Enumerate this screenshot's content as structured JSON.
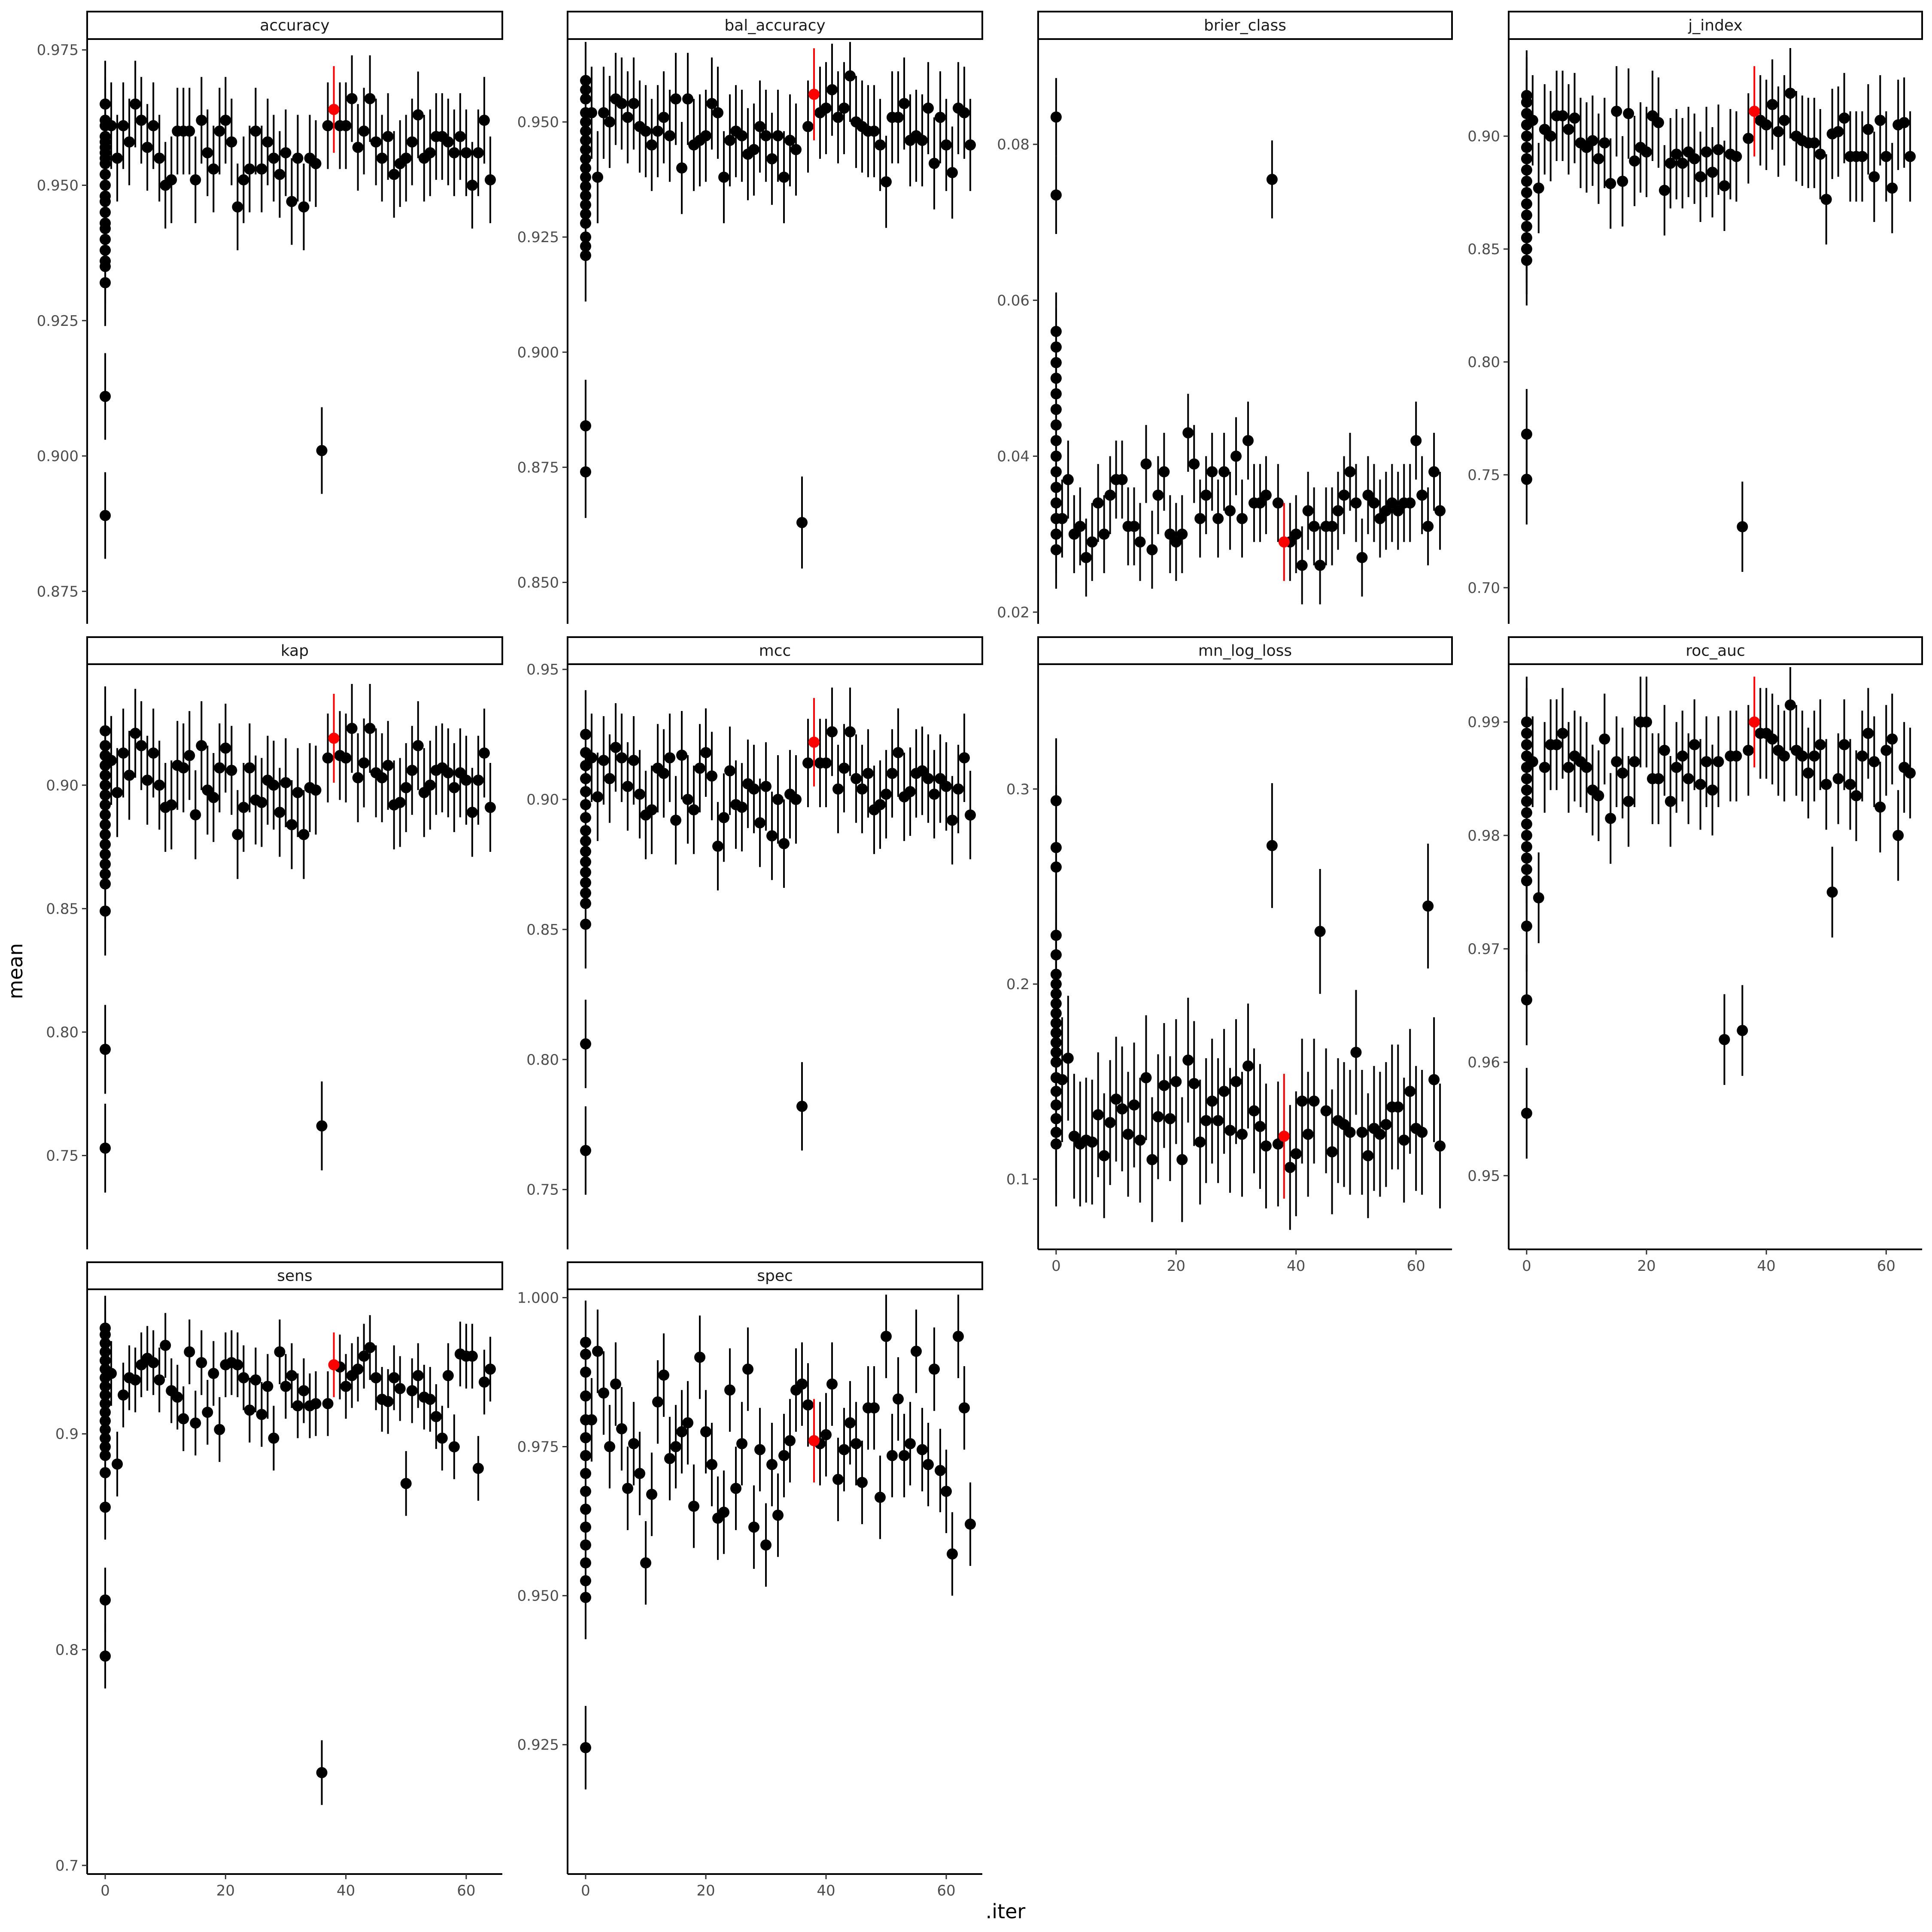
{
  "figure": {
    "ylabel": "mean",
    "xlabel": ".iter",
    "colors": {
      "point": "#000000",
      "highlight": "#ff0000",
      "axis": "#000000",
      "strip_fill": "#ffffff"
    }
  },
  "chart_data": [
    {
      "type": "scatter",
      "panel": "accuracy",
      "title": "accuracy",
      "x_ticks": [],
      "xlim": [
        -3,
        66
      ],
      "y_ticks": [
        0.875,
        0.9,
        0.925,
        0.95,
        0.975
      ],
      "y_tick_labels": [
        "0.875",
        "0.900",
        "0.925",
        "0.950",
        "0.975"
      ],
      "ylim": [
        0.869,
        0.977
      ],
      "initial": [
        0.965,
        0.962,
        0.961,
        0.959,
        0.958,
        0.957,
        0.956,
        0.955,
        0.954,
        0.952,
        0.95,
        0.948,
        0.947,
        0.945,
        0.943,
        0.942,
        0.94,
        0.938,
        0.936,
        0.935,
        0.932,
        0.911,
        0.889
      ],
      "iter_means": [
        0.961,
        0.955,
        0.961,
        0.958,
        0.965,
        0.962,
        0.957,
        0.961,
        0.955,
        0.95,
        0.951,
        0.96,
        0.96,
        0.96,
        0.951,
        0.962,
        0.956,
        0.953,
        0.96,
        0.962,
        0.958,
        0.946,
        0.951,
        0.953,
        0.96,
        0.953,
        0.958,
        0.955,
        0.952,
        0.956,
        0.947,
        0.955,
        0.946,
        0.955,
        0.954,
        0.901,
        0.961,
        0.964,
        0.961,
        0.961,
        0.966,
        0.957,
        0.96,
        0.966,
        0.958,
        0.955,
        0.959,
        0.952,
        0.954,
        0.955,
        0.958,
        0.963,
        0.955,
        0.956,
        0.959,
        0.959,
        0.958,
        0.956,
        0.959,
        0.956,
        0.95,
        0.956,
        0.962,
        0.951
      ],
      "err": 0.008,
      "best_iter": 38
    },
    {
      "type": "scatter",
      "panel": "bal_accuracy",
      "title": "bal_accuracy",
      "x_ticks": [],
      "xlim": [
        -3,
        66
      ],
      "y_ticks": [
        0.85,
        0.875,
        0.9,
        0.925,
        0.95
      ],
      "y_tick_labels": [
        "0.850",
        "0.875",
        "0.900",
        "0.925",
        "0.950"
      ],
      "ylim": [
        0.841,
        0.968
      ],
      "initial": [
        0.959,
        0.957,
        0.955,
        0.952,
        0.95,
        0.948,
        0.946,
        0.944,
        0.942,
        0.94,
        0.938,
        0.936,
        0.934,
        0.932,
        0.93,
        0.928,
        0.925,
        0.923,
        0.921,
        0.884,
        0.874
      ],
      "iter_means": [
        0.952,
        0.938,
        0.952,
        0.95,
        0.955,
        0.954,
        0.951,
        0.954,
        0.949,
        0.948,
        0.945,
        0.948,
        0.951,
        0.947,
        0.955,
        0.94,
        0.955,
        0.945,
        0.946,
        0.947,
        0.954,
        0.952,
        0.938,
        0.946,
        0.948,
        0.947,
        0.943,
        0.944,
        0.949,
        0.947,
        0.942,
        0.947,
        0.938,
        0.946,
        0.944,
        0.863,
        0.949,
        0.956,
        0.952,
        0.953,
        0.957,
        0.951,
        0.953,
        0.96,
        0.95,
        0.949,
        0.948,
        0.948,
        0.945,
        0.937,
        0.951,
        0.951,
        0.954,
        0.946,
        0.947,
        0.946,
        0.953,
        0.941,
        0.951,
        0.945,
        0.939,
        0.953,
        0.952,
        0.945
      ],
      "err": 0.01,
      "best_iter": 38
    },
    {
      "type": "scatter",
      "panel": "brier_class",
      "title": "brier_class",
      "x_ticks": [],
      "xlim": [
        -3,
        66
      ],
      "y_ticks": [
        0.02,
        0.04,
        0.06,
        0.08
      ],
      "y_tick_labels": [
        "0.02",
        "0.04",
        "0.06",
        "0.08"
      ],
      "ylim": [
        0.0185,
        0.0935
      ],
      "initial": [
        0.0835,
        0.0735,
        0.056,
        0.054,
        0.052,
        0.05,
        0.048,
        0.046,
        0.044,
        0.042,
        0.04,
        0.038,
        0.036,
        0.034,
        0.032,
        0.03,
        0.028
      ],
      "iter_means": [
        0.032,
        0.037,
        0.03,
        0.031,
        0.027,
        0.029,
        0.034,
        0.03,
        0.035,
        0.037,
        0.037,
        0.031,
        0.031,
        0.029,
        0.039,
        0.028,
        0.035,
        0.038,
        0.03,
        0.029,
        0.03,
        0.043,
        0.039,
        0.032,
        0.035,
        0.038,
        0.032,
        0.038,
        0.033,
        0.04,
        0.032,
        0.042,
        0.034,
        0.034,
        0.035,
        0.0755,
        0.034,
        0.029,
        0.029,
        0.03,
        0.026,
        0.033,
        0.031,
        0.026,
        0.031,
        0.031,
        0.033,
        0.035,
        0.038,
        0.034,
        0.027,
        0.035,
        0.034,
        0.032,
        0.033,
        0.034,
        0.033,
        0.034,
        0.034,
        0.042,
        0.035,
        0.031,
        0.038,
        0.033
      ],
      "err": 0.005,
      "best_iter": 38
    },
    {
      "type": "scatter",
      "panel": "j_index",
      "title": "j_index",
      "x_ticks": [],
      "xlim": [
        -3,
        66
      ],
      "y_ticks": [
        0.7,
        0.75,
        0.8,
        0.85,
        0.9
      ],
      "y_tick_labels": [
        "0.70",
        "0.75",
        "0.80",
        "0.85",
        "0.90"
      ],
      "ylim": [
        0.684,
        0.943
      ],
      "initial": [
        0.918,
        0.915,
        0.91,
        0.905,
        0.9,
        0.895,
        0.89,
        0.885,
        0.88,
        0.875,
        0.87,
        0.865,
        0.86,
        0.855,
        0.85,
        0.845,
        0.768,
        0.748
      ],
      "iter_means": [
        0.907,
        0.877,
        0.903,
        0.9,
        0.909,
        0.909,
        0.903,
        0.908,
        0.897,
        0.895,
        0.898,
        0.89,
        0.897,
        0.879,
        0.911,
        0.88,
        0.91,
        0.889,
        0.895,
        0.893,
        0.909,
        0.906,
        0.876,
        0.888,
        0.892,
        0.888,
        0.893,
        0.89,
        0.882,
        0.893,
        0.884,
        0.894,
        0.878,
        0.892,
        0.891,
        0.727,
        0.899,
        0.911,
        0.907,
        0.905,
        0.914,
        0.902,
        0.907,
        0.919,
        0.9,
        0.898,
        0.897,
        0.897,
        0.892,
        0.872,
        0.901,
        0.902,
        0.908,
        0.891,
        0.891,
        0.891,
        0.903,
        0.882,
        0.907,
        0.891,
        0.877,
        0.905,
        0.906,
        0.891
      ],
      "err": 0.02,
      "best_iter": 38
    },
    {
      "type": "scatter",
      "panel": "kap",
      "title": "kap",
      "x_ticks": [],
      "xlim": [
        -3,
        66
      ],
      "y_ticks": [
        0.75,
        0.8,
        0.85,
        0.9
      ],
      "y_tick_labels": [
        "0.75",
        "0.80",
        "0.85",
        "0.90"
      ],
      "ylim": [
        0.712,
        0.949
      ],
      "initial": [
        0.922,
        0.916,
        0.912,
        0.908,
        0.904,
        0.9,
        0.896,
        0.892,
        0.888,
        0.884,
        0.88,
        0.876,
        0.872,
        0.868,
        0.864,
        0.86,
        0.849,
        0.793,
        0.753
      ],
      "iter_means": [
        0.91,
        0.897,
        0.913,
        0.904,
        0.921,
        0.916,
        0.902,
        0.913,
        0.9,
        0.891,
        0.892,
        0.908,
        0.907,
        0.912,
        0.888,
        0.916,
        0.898,
        0.895,
        0.907,
        0.915,
        0.906,
        0.88,
        0.891,
        0.907,
        0.894,
        0.893,
        0.902,
        0.9,
        0.889,
        0.901,
        0.884,
        0.897,
        0.88,
        0.899,
        0.898,
        0.762,
        0.911,
        0.919,
        0.912,
        0.911,
        0.923,
        0.903,
        0.909,
        0.923,
        0.905,
        0.903,
        0.908,
        0.892,
        0.893,
        0.899,
        0.906,
        0.916,
        0.897,
        0.9,
        0.906,
        0.907,
        0.905,
        0.899,
        0.905,
        0.902,
        0.889,
        0.902,
        0.913,
        0.891
      ],
      "err": 0.018,
      "best_iter": 38
    },
    {
      "type": "scatter",
      "panel": "mcc",
      "title": "mcc",
      "x_ticks": [],
      "xlim": [
        -3,
        66
      ],
      "y_ticks": [
        0.75,
        0.8,
        0.85,
        0.9,
        0.95
      ],
      "y_tick_labels": [
        "0.75",
        "0.80",
        "0.85",
        "0.90",
        "0.95"
      ],
      "ylim": [
        0.727,
        0.952
      ],
      "initial": [
        0.925,
        0.918,
        0.913,
        0.908,
        0.903,
        0.898,
        0.893,
        0.888,
        0.884,
        0.88,
        0.876,
        0.872,
        0.868,
        0.864,
        0.86,
        0.852,
        0.806,
        0.765
      ],
      "iter_means": [
        0.916,
        0.901,
        0.915,
        0.908,
        0.92,
        0.916,
        0.905,
        0.915,
        0.902,
        0.894,
        0.896,
        0.912,
        0.91,
        0.916,
        0.892,
        0.917,
        0.9,
        0.896,
        0.912,
        0.918,
        0.909,
        0.882,
        0.893,
        0.911,
        0.898,
        0.897,
        0.906,
        0.904,
        0.891,
        0.905,
        0.886,
        0.9,
        0.883,
        0.902,
        0.9,
        0.782,
        0.914,
        0.922,
        0.914,
        0.914,
        0.926,
        0.904,
        0.912,
        0.926,
        0.908,
        0.904,
        0.91,
        0.896,
        0.898,
        0.902,
        0.91,
        0.918,
        0.901,
        0.903,
        0.91,
        0.911,
        0.908,
        0.902,
        0.908,
        0.905,
        0.892,
        0.904,
        0.916,
        0.894
      ],
      "err": 0.017,
      "best_iter": 38
    },
    {
      "type": "scatter",
      "panel": "mn_log_loss",
      "title": "mn_log_loss",
      "x_ticks": [
        0,
        20,
        40,
        60
      ],
      "x_tick_labels": [
        "0",
        "20",
        "40",
        "60"
      ],
      "xlim": [
        -3,
        66
      ],
      "y_ticks": [
        0.1,
        0.2,
        0.3
      ],
      "y_tick_labels": [
        "0.1",
        "0.2",
        "0.3"
      ],
      "ylim": [
        0.064,
        0.364
      ],
      "initial": [
        0.294,
        0.27,
        0.26,
        0.225,
        0.215,
        0.205,
        0.2,
        0.195,
        0.19,
        0.185,
        0.18,
        0.175,
        0.17,
        0.165,
        0.16,
        0.152,
        0.145,
        0.138,
        0.131,
        0.124,
        0.118
      ],
      "iter_means": [
        0.151,
        0.162,
        0.122,
        0.118,
        0.12,
        0.119,
        0.133,
        0.112,
        0.129,
        0.141,
        0.136,
        0.123,
        0.138,
        0.12,
        0.152,
        0.11,
        0.132,
        0.148,
        0.131,
        0.15,
        0.11,
        0.161,
        0.149,
        0.119,
        0.13,
        0.14,
        0.13,
        0.145,
        0.125,
        0.15,
        0.123,
        0.158,
        0.135,
        0.127,
        0.117,
        0.271,
        0.118,
        0.122,
        0.106,
        0.113,
        0.14,
        0.123,
        0.14,
        0.227,
        0.135,
        0.114,
        0.13,
        0.128,
        0.124,
        0.165,
        0.124,
        0.112,
        0.126,
        0.123,
        0.128,
        0.137,
        0.137,
        0.12,
        0.145,
        0.126,
        0.124,
        0.24,
        0.151,
        0.117
      ],
      "err": 0.032,
      "best_iter": 38
    },
    {
      "type": "scatter",
      "panel": "roc_auc",
      "title": "roc_auc",
      "x_ticks": [
        0,
        20,
        40,
        60
      ],
      "x_tick_labels": [
        "0",
        "20",
        "40",
        "60"
      ],
      "xlim": [
        -3,
        66
      ],
      "y_ticks": [
        0.95,
        0.96,
        0.97,
        0.98,
        0.99
      ],
      "y_tick_labels": [
        "0.95",
        "0.96",
        "0.97",
        "0.98",
        "0.99"
      ],
      "ylim": [
        0.9435,
        0.9951
      ],
      "initial": [
        0.99,
        0.989,
        0.988,
        0.987,
        0.986,
        0.985,
        0.984,
        0.983,
        0.982,
        0.981,
        0.98,
        0.979,
        0.978,
        0.977,
        0.976,
        0.972,
        0.9655,
        0.9555
      ],
      "iter_means": [
        0.9865,
        0.9745,
        0.986,
        0.988,
        0.988,
        0.989,
        0.986,
        0.987,
        0.9865,
        0.986,
        0.984,
        0.9835,
        0.9885,
        0.9815,
        0.9865,
        0.9855,
        0.983,
        0.9865,
        0.99,
        0.99,
        0.985,
        0.985,
        0.9875,
        0.983,
        0.986,
        0.987,
        0.985,
        0.988,
        0.9845,
        0.9865,
        0.984,
        0.9865,
        0.962,
        0.987,
        0.987,
        0.9628,
        0.9875,
        0.99,
        0.989,
        0.989,
        0.9885,
        0.9875,
        0.987,
        0.9915,
        0.9875,
        0.987,
        0.9855,
        0.987,
        0.988,
        0.9845,
        0.975,
        0.985,
        0.988,
        0.9845,
        0.9835,
        0.987,
        0.989,
        0.9865,
        0.9825,
        0.9875,
        0.9885,
        0.98,
        0.986,
        0.9855
      ],
      "err": 0.004,
      "best_iter": 38
    },
    {
      "type": "scatter",
      "panel": "sens",
      "title": "sens",
      "x_ticks": [
        0,
        20,
        40,
        60
      ],
      "x_tick_labels": [
        "0",
        "20",
        "40",
        "60"
      ],
      "xlim": [
        -3,
        66
      ],
      "y_ticks": [
        0.7,
        0.8,
        0.9
      ],
      "y_tick_labels": [
        "0.7",
        "0.8",
        "0.9"
      ],
      "ylim": [
        0.696,
        0.967
      ],
      "initial": [
        0.949,
        0.946,
        0.942,
        0.938,
        0.934,
        0.93,
        0.926,
        0.922,
        0.918,
        0.914,
        0.91,
        0.906,
        0.902,
        0.898,
        0.894,
        0.89,
        0.882,
        0.866,
        0.823,
        0.797
      ],
      "iter_means": [
        0.928,
        0.886,
        0.918,
        0.926,
        0.925,
        0.932,
        0.935,
        0.933,
        0.925,
        0.941,
        0.92,
        0.917,
        0.907,
        0.938,
        0.905,
        0.933,
        0.91,
        0.928,
        0.902,
        0.932,
        0.933,
        0.932,
        0.926,
        0.911,
        0.925,
        0.909,
        0.922,
        0.898,
        0.938,
        0.922,
        0.927,
        0.913,
        0.92,
        0.913,
        0.914,
        0.743,
        0.914,
        0.932,
        0.931,
        0.922,
        0.927,
        0.93,
        0.936,
        0.94,
        0.926,
        0.916,
        0.915,
        0.926,
        0.921,
        0.877,
        0.92,
        0.927,
        0.917,
        0.916,
        0.908,
        0.898,
        0.927,
        0.894,
        0.937,
        0.936,
        0.936,
        0.884,
        0.924,
        0.93
      ],
      "err": 0.015,
      "best_iter": 38
    },
    {
      "type": "scatter",
      "panel": "spec",
      "title": "spec",
      "x_ticks": [
        0,
        20,
        40,
        60
      ],
      "x_tick_labels": [
        "0",
        "20",
        "40",
        "60"
      ],
      "xlim": [
        -3,
        66
      ],
      "y_ticks": [
        0.925,
        0.95,
        0.975,
        1.0
      ],
      "y_tick_labels": [
        "0.925",
        "0.950",
        "0.975",
        "1.000"
      ],
      "ylim": [
        0.9033,
        1.0014
      ],
      "initial": [
        0.9925,
        0.9905,
        0.9875,
        0.9835,
        0.9795,
        0.9765,
        0.9735,
        0.9705,
        0.9675,
        0.9645,
        0.9615,
        0.9585,
        0.9555,
        0.9525,
        0.9497,
        0.9245
      ],
      "iter_means": [
        0.9795,
        0.991,
        0.984,
        0.975,
        0.9855,
        0.978,
        0.968,
        0.9755,
        0.9705,
        0.9555,
        0.967,
        0.9825,
        0.987,
        0.973,
        0.975,
        0.9775,
        0.979,
        0.965,
        0.99,
        0.9775,
        0.972,
        0.963,
        0.964,
        0.9845,
        0.968,
        0.9755,
        0.988,
        0.9615,
        0.9745,
        0.9585,
        0.972,
        0.9635,
        0.9735,
        0.976,
        0.9845,
        0.9855,
        0.982,
        0.976,
        0.9755,
        0.977,
        0.9855,
        0.9695,
        0.9745,
        0.979,
        0.9755,
        0.969,
        0.9815,
        0.9815,
        0.9665,
        0.9935,
        0.9735,
        0.983,
        0.9735,
        0.9755,
        0.991,
        0.9745,
        0.972,
        0.988,
        0.971,
        0.9675,
        0.957,
        0.9935,
        0.9815,
        0.962
      ],
      "err": 0.007,
      "best_iter": 38
    }
  ]
}
